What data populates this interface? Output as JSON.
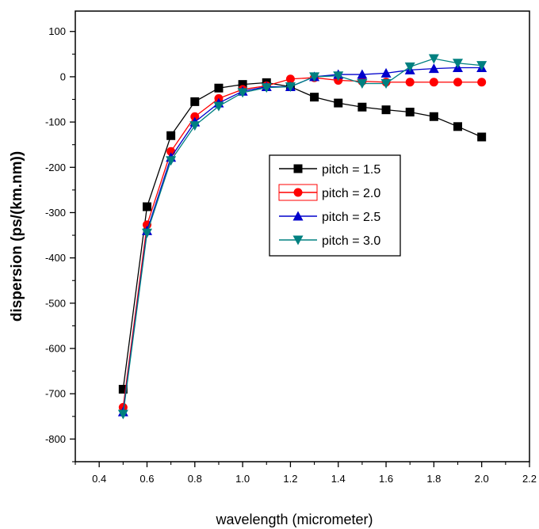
{
  "chart_data": {
    "type": "line",
    "xlabel": "wavelength (micrometer)",
    "ylabel": "dispersion (ps/(km.nm))",
    "xlim": [
      0.3,
      2.2
    ],
    "ylim": [
      -850,
      145
    ],
    "xticks": [
      0.4,
      0.6,
      0.8,
      1.0,
      1.2,
      1.4,
      1.6,
      1.8,
      2.0,
      2.2
    ],
    "yticks": [
      100,
      0,
      -100,
      -200,
      -300,
      -400,
      -500,
      -600,
      -700,
      -800
    ],
    "grid": false,
    "legend_position": "center-right",
    "x": [
      0.5,
      0.6,
      0.7,
      0.8,
      0.9,
      1.0,
      1.1,
      1.2,
      1.3,
      1.4,
      1.5,
      1.6,
      1.7,
      1.8,
      1.9,
      2.0
    ],
    "series": [
      {
        "name": "pitch = 1.5",
        "color": "#000000",
        "marker": "square",
        "values": [
          -690,
          -287,
          -130,
          -55,
          -25,
          -17,
          -13,
          -22,
          -45,
          -58,
          -67,
          -73,
          -78,
          -88,
          -110,
          -133
        ]
      },
      {
        "name": "pitch = 2.0",
        "color": "#ff0000",
        "marker": "circle",
        "values": [
          -730,
          -327,
          -165,
          -88,
          -48,
          -28,
          -20,
          -5,
          -2,
          -8,
          -10,
          -12,
          -12,
          -12,
          -12,
          -12
        ]
      },
      {
        "name": "pitch = 2.5",
        "color": "#0000cc",
        "marker": "triangle-up",
        "values": [
          -740,
          -340,
          -178,
          -100,
          -58,
          -32,
          -22,
          -22,
          0,
          5,
          5,
          8,
          15,
          18,
          20,
          20
        ]
      },
      {
        "name": "pitch = 3.0",
        "color": "#008080",
        "marker": "triangle-down",
        "values": [
          -745,
          -345,
          -185,
          -108,
          -65,
          -35,
          -24,
          -22,
          0,
          2,
          -15,
          -15,
          22,
          40,
          30,
          25
        ]
      }
    ]
  }
}
